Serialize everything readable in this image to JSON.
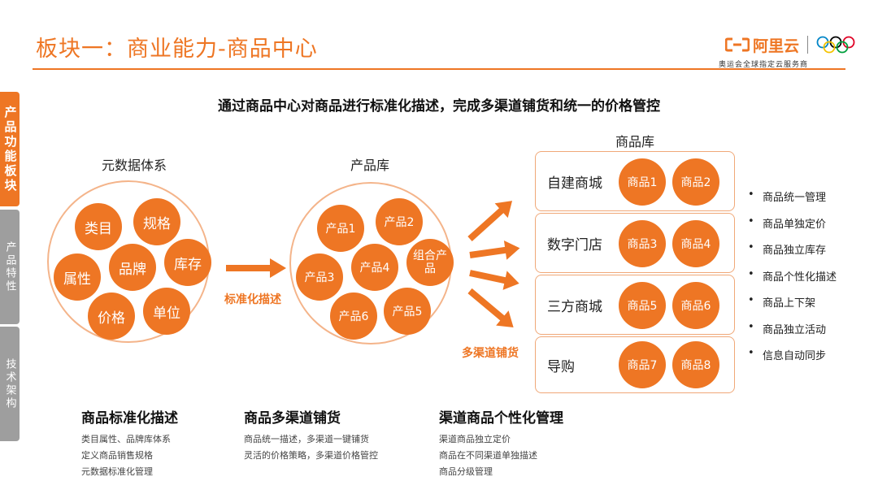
{
  "header": {
    "title": "板块一：商业能力-商品中心",
    "brand": "阿里云",
    "tagline": "奥运会全球指定云服务商"
  },
  "sidebar": [
    {
      "label": "产品功能板块",
      "active": true
    },
    {
      "label": "产品特性",
      "active": false
    },
    {
      "label": "技术架构",
      "active": false
    }
  ],
  "headline": "通过商品中心对商品进行标准化描述，完成多渠道铺货和统一的价格管控",
  "groups": {
    "meta": {
      "label": "元数据体系",
      "items": [
        "类目",
        "规格",
        "属性",
        "品牌",
        "库存",
        "价格",
        "单位"
      ]
    },
    "product": {
      "label": "产品库",
      "items": [
        "产品1",
        "产品2",
        "产品3",
        "产品4",
        "组合产品",
        "产品6",
        "产品5"
      ]
    },
    "goods": {
      "label": "商品库",
      "channels": [
        {
          "name": "自建商城",
          "items": [
            "商品1",
            "商品2"
          ]
        },
        {
          "name": "数字门店",
          "items": [
            "商品3",
            "商品4"
          ]
        },
        {
          "name": "三方商城",
          "items": [
            "商品5",
            "商品6"
          ]
        },
        {
          "name": "导购",
          "items": [
            "商品7",
            "商品8"
          ]
        }
      ]
    }
  },
  "arrows": {
    "standardize": "标准化描述",
    "multichannel": "多渠道铺货"
  },
  "bullets": [
    "商品统一管理",
    "商品单独定价",
    "商品独立库存",
    "商品个性化描述",
    "商品上下架",
    "商品独立活动",
    "信息自动同步"
  ],
  "footer": [
    {
      "title": "商品标准化描述",
      "lines": [
        "类目属性、品牌库体系",
        "定义商品销售规格",
        "元数据标准化管理"
      ]
    },
    {
      "title": "商品多渠道铺货",
      "lines": [
        "商品统一描述，多渠道一键铺货",
        "灵活的价格策略，多渠道价格管控"
      ]
    },
    {
      "title": "渠道商品个性化管理",
      "lines": [
        "渠道商品独立定价",
        "商品在不同渠道单独描述",
        "商品分级管理"
      ]
    }
  ],
  "colors": {
    "accent": "#ee7624",
    "sidebar_inactive": "#9e9e9e",
    "circle_border": "#f4b48a"
  }
}
